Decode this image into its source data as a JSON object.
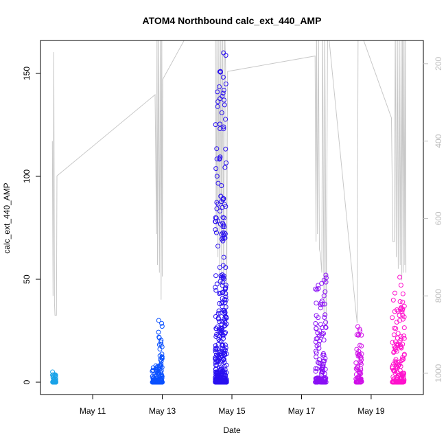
{
  "chart_data": {
    "type": "scatter",
    "title": "ATOM4 Northbound calc_ext_440_AMP",
    "xlabel": "Date",
    "ylabel": "calc_ext_440_AMP",
    "x_axis_type": "date",
    "x_range": [
      "2021-05-09T12:00",
      "2021-05-20T12:00"
    ],
    "x_ticks": [
      {
        "date": "2021-05-11",
        "label": "May 11"
      },
      {
        "date": "2021-05-13",
        "label": "May 13"
      },
      {
        "date": "2021-05-15",
        "label": "May 15"
      },
      {
        "date": "2021-05-17",
        "label": "May 17"
      },
      {
        "date": "2021-05-19",
        "label": "May 19"
      }
    ],
    "y_left": {
      "range": [
        -6,
        166
      ],
      "ticks": [
        0,
        50,
        100,
        150
      ]
    },
    "y_right": {
      "range": [
        1055,
        140
      ],
      "ticks": [
        200,
        400,
        600,
        800,
        1000
      ],
      "reversed": true,
      "color": "#bebebe"
    },
    "grid": false,
    "legend": "none",
    "series": [
      {
        "color": "#1aa3e8",
        "clusters": [
          {
            "start": "2021-05-09T20:20",
            "end": "2021-05-09T22:40",
            "max": 5
          }
        ]
      },
      {
        "color": "#0a50ff",
        "clusters": [
          {
            "start": "2021-05-12T17:00",
            "end": "2021-05-12T21:00",
            "max": 8
          },
          {
            "start": "2021-05-12T21:00",
            "end": "2021-05-13T00:00",
            "max": 30
          }
        ]
      },
      {
        "color": "#2a10f0",
        "clusters": [
          {
            "start": "2021-05-14T12:30",
            "end": "2021-05-14T20:20",
            "max": 160
          }
        ]
      },
      {
        "color": "#8a10f5",
        "clusters": [
          {
            "start": "2021-05-17T09:30",
            "end": "2021-05-17T17:00",
            "max": 52
          }
        ]
      },
      {
        "color": "#d010e8",
        "clusters": [
          {
            "start": "2021-05-18T13:30",
            "end": "2021-05-18T17:30",
            "max": 27
          }
        ]
      },
      {
        "color": "#ff10cc",
        "clusters": [
          {
            "start": "2021-05-19T14:30",
            "end": "2021-05-19T23:00",
            "max": 51
          }
        ]
      }
    ],
    "secondary_line": {
      "color": "#c8c8c8",
      "axis": "right",
      "points": [
        [
          "2021-05-09T20:10",
          400
        ],
        [
          "2021-05-09T20:40",
          800
        ],
        [
          "2021-05-09T21:10",
          170
        ],
        [
          "2021-05-09T21:40",
          820
        ],
        [
          "2021-05-09T22:00",
          850
        ],
        [
          "2021-05-09T23:00",
          850
        ],
        [
          "2021-05-09T23:20",
          490
        ],
        [
          "2021-05-12T19:00",
          280
        ],
        [
          "2021-05-12T20:00",
          640
        ],
        [
          "2021-05-12T20:20",
          100
        ],
        [
          "2021-05-12T20:40",
          720
        ],
        [
          "2021-05-12T21:20",
          100
        ],
        [
          "2021-05-12T22:00",
          740
        ],
        [
          "2021-05-12T22:40",
          100
        ],
        [
          "2021-05-12T23:10",
          810
        ],
        [
          "2021-05-12T23:40",
          100
        ],
        [
          "2021-05-13T00:00",
          750
        ],
        [
          "2021-05-13T00:20",
          240
        ],
        [
          "2021-05-13T15:00",
          140
        ],
        [
          "2021-05-14T12:40",
          140
        ],
        [
          "2021-05-14T13:10",
          640
        ],
        [
          "2021-05-14T13:40",
          100
        ],
        [
          "2021-05-14T14:20",
          700
        ],
        [
          "2021-05-14T15:00",
          100
        ],
        [
          "2021-05-14T15:40",
          770
        ],
        [
          "2021-05-14T16:20",
          100
        ],
        [
          "2021-05-14T17:00",
          790
        ],
        [
          "2021-05-14T17:40",
          100
        ],
        [
          "2021-05-14T18:20",
          810
        ],
        [
          "2021-05-14T19:00",
          100
        ],
        [
          "2021-05-14T19:40",
          210
        ],
        [
          "2021-05-14T20:20",
          855
        ],
        [
          "2021-05-14T21:00",
          220
        ],
        [
          "2021-05-17T09:20",
          180
        ],
        [
          "2021-05-17T10:00",
          660
        ],
        [
          "2021-05-17T10:20",
          100
        ],
        [
          "2021-05-17T11:00",
          640
        ],
        [
          "2021-05-17T11:40",
          100
        ],
        [
          "2021-05-17T12:20",
          680
        ],
        [
          "2021-05-17T13:00",
          690
        ],
        [
          "2021-05-17T14:00",
          740
        ],
        [
          "2021-05-17T14:30",
          100
        ],
        [
          "2021-05-17T15:30",
          850
        ],
        [
          "2021-05-17T16:00",
          100
        ],
        [
          "2021-05-17T17:00",
          880
        ],
        [
          "2021-05-17T18:00",
          100
        ],
        [
          "2021-05-18T13:30",
          840
        ],
        [
          "2021-05-18T14:20",
          870
        ],
        [
          "2021-05-18T15:00",
          100
        ],
        [
          "2021-05-19T14:00",
          340
        ],
        [
          "2021-05-19T15:00",
          660
        ],
        [
          "2021-05-19T16:00",
          660
        ],
        [
          "2021-05-19T16:40",
          100
        ],
        [
          "2021-05-19T17:20",
          700
        ],
        [
          "2021-05-19T18:00",
          100
        ],
        [
          "2021-05-19T18:40",
          730
        ],
        [
          "2021-05-19T19:20",
          100
        ],
        [
          "2021-05-19T20:00",
          720
        ],
        [
          "2021-05-19T20:40",
          100
        ],
        [
          "2021-05-19T21:10",
          760
        ],
        [
          "2021-05-19T21:40",
          100
        ],
        [
          "2021-05-19T22:10",
          740
        ],
        [
          "2021-05-19T22:40",
          100
        ],
        [
          "2021-05-19T23:10",
          720
        ],
        [
          "2021-05-19T23:40",
          100
        ],
        [
          "2021-05-20T00:00",
          740
        ]
      ]
    }
  }
}
